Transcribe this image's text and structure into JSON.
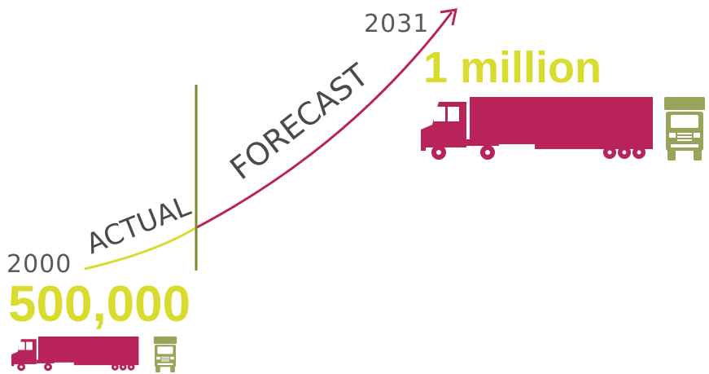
{
  "start": {
    "year": "2000",
    "value": "500,000"
  },
  "end": {
    "year": "2031",
    "value": "1 million"
  },
  "curve": {
    "actual_label": "ACTUAL",
    "forecast_label": "FORECAST"
  },
  "colors": {
    "actual": "#d9dc2e",
    "forecast": "#b8245a",
    "divider": "#7d8a2b",
    "truck_body": "#b8245a",
    "truck_front": "#9aa35a",
    "year_text": "#5a5a5a"
  },
  "icons": [
    "truck-side-icon",
    "truck-front-icon",
    "arrow-head-icon"
  ]
}
